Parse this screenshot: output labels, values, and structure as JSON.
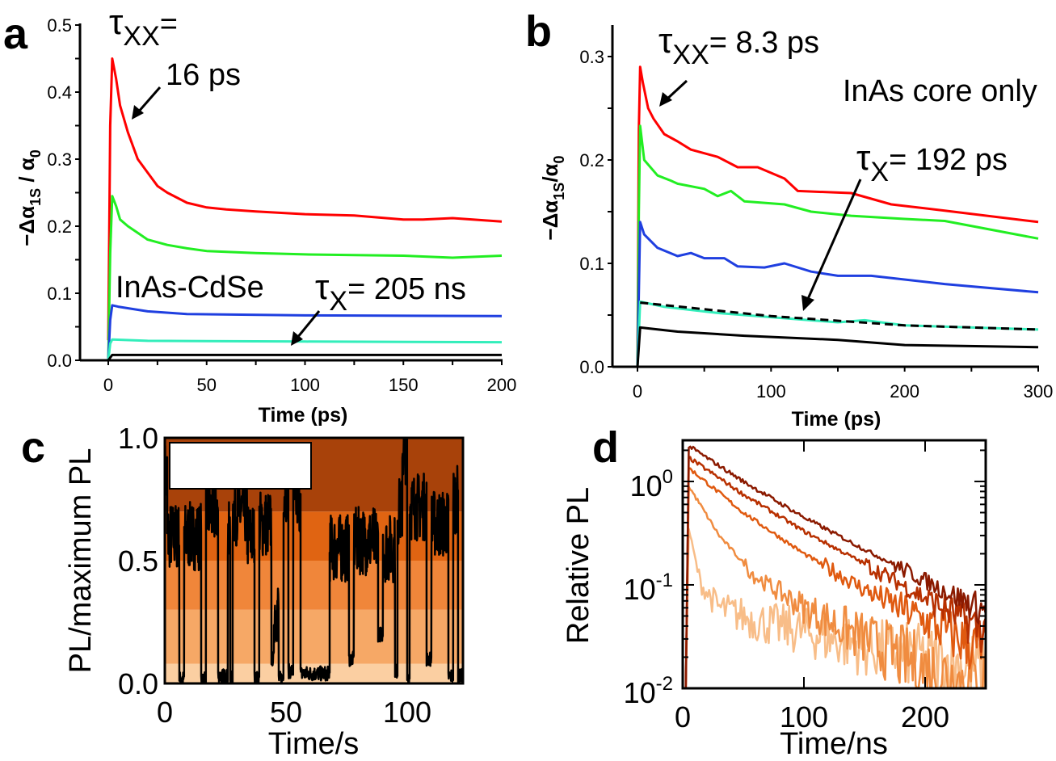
{
  "chart_data": [
    {
      "panel": "a",
      "type": "line",
      "xlabel": "Time (ps)",
      "ylabel": {
        "main": "−Δα",
        "sub1": "1S",
        "mid": " / α",
        "sub2": "0"
      },
      "xlim": [
        -10,
        200
      ],
      "ylim": [
        0,
        0.5
      ],
      "xticks": [
        "0",
        "50",
        "100",
        "150",
        "200"
      ],
      "yticks": [
        "0.0",
        "0.1",
        "0.2",
        "0.3",
        "0.4",
        "0.5"
      ],
      "annotations": {
        "tau_xx": {
          "symbol": "τ",
          "sub": "XX",
          "eq": "=",
          "value": "16 ps"
        },
        "sample": "InAs-CdSe",
        "tau_x": {
          "symbol": "τ",
          "sub": "X",
          "eq": "= 205 ns"
        }
      },
      "series": [
        {
          "color": "#ff0000",
          "x": [
            0,
            1,
            2,
            4,
            6,
            10,
            15,
            20,
            25,
            30,
            40,
            50,
            60,
            75,
            100,
            125,
            150,
            160,
            175,
            200
          ],
          "y": [
            0.03,
            0.35,
            0.45,
            0.42,
            0.38,
            0.34,
            0.3,
            0.28,
            0.26,
            0.25,
            0.235,
            0.228,
            0.225,
            0.222,
            0.218,
            0.216,
            0.21,
            0.21,
            0.212,
            0.207
          ]
        },
        {
          "color": "#22ee22",
          "x": [
            0,
            1,
            2,
            4,
            6,
            10,
            15,
            20,
            30,
            40,
            50,
            75,
            100,
            125,
            150,
            175,
            200
          ],
          "y": [
            0,
            0.16,
            0.245,
            0.23,
            0.21,
            0.2,
            0.19,
            0.18,
            0.172,
            0.167,
            0.163,
            0.16,
            0.158,
            0.157,
            0.156,
            0.153,
            0.156
          ]
        },
        {
          "color": "#1f3fe0",
          "x": [
            0,
            1,
            2,
            5,
            20,
            40,
            100,
            200
          ],
          "y": [
            0,
            0.06,
            0.082,
            0.08,
            0.073,
            0.069,
            0.067,
            0.066
          ]
        },
        {
          "color": "#33eebb",
          "x": [
            0,
            1,
            2,
            20,
            100,
            200
          ],
          "y": [
            0,
            0.025,
            0.031,
            0.029,
            0.028,
            0.027
          ]
        },
        {
          "color": "#000000",
          "x": [
            0,
            2,
            200
          ],
          "y": [
            0,
            0.008,
            0.008
          ]
        }
      ]
    },
    {
      "panel": "b",
      "type": "line",
      "xlabel": "Time (ps)",
      "ylabel": {
        "main": "−Δα",
        "sub1": "1S",
        "mid": "/α",
        "sub2": "0"
      },
      "xlim": [
        -20,
        300
      ],
      "ylim": [
        0,
        0.33
      ],
      "xticks": [
        "0",
        "100",
        "200",
        "300"
      ],
      "yticks": [
        "0.0",
        "0.1",
        "0.2",
        "0.3"
      ],
      "annotations": {
        "tau_xx": {
          "symbol": "τ",
          "sub": "XX",
          "eq": "= 8.3 ps"
        },
        "sample": "InAs core only",
        "tau_x": {
          "symbol": "τ",
          "sub": "X",
          "eq": "= 192 ps"
        }
      },
      "series": [
        {
          "color": "#ff0000",
          "x": [
            0,
            1,
            2,
            4,
            8,
            12,
            20,
            30,
            40,
            60,
            75,
            90,
            110,
            120,
            160,
            190,
            230,
            300
          ],
          "y": [
            0,
            0.23,
            0.29,
            0.275,
            0.25,
            0.24,
            0.225,
            0.218,
            0.21,
            0.203,
            0.193,
            0.193,
            0.182,
            0.17,
            0.168,
            0.157,
            0.151,
            0.14
          ]
        },
        {
          "color": "#22ee22",
          "x": [
            0,
            1,
            2,
            5,
            15,
            25,
            30,
            50,
            60,
            70,
            80,
            110,
            130,
            160,
            200,
            230,
            300
          ],
          "y": [
            0,
            0.15,
            0.233,
            0.2,
            0.185,
            0.18,
            0.177,
            0.172,
            0.165,
            0.17,
            0.16,
            0.157,
            0.15,
            0.146,
            0.143,
            0.141,
            0.124
          ]
        },
        {
          "color": "#1f3fe0",
          "x": [
            0,
            2,
            5,
            15,
            30,
            40,
            50,
            65,
            75,
            95,
            110,
            130,
            150,
            175,
            230,
            300
          ],
          "y": [
            0,
            0.14,
            0.128,
            0.115,
            0.107,
            0.11,
            0.105,
            0.105,
            0.097,
            0.096,
            0.1,
            0.092,
            0.088,
            0.088,
            0.08,
            0.072
          ]
        },
        {
          "color": "#33eebb",
          "x": [
            0,
            2,
            20,
            40,
            60,
            100,
            150,
            170,
            200,
            300
          ],
          "y": [
            0,
            0.063,
            0.058,
            0.055,
            0.052,
            0.048,
            0.043,
            0.045,
            0.04,
            0.036
          ]
        },
        {
          "color": "#000000",
          "dashed": true,
          "x": [
            2,
            100,
            200,
            300
          ],
          "y": [
            0.062,
            0.049,
            0.04,
            0.036
          ]
        },
        {
          "color": "#000000",
          "x": [
            0,
            2,
            30,
            80,
            150,
            200,
            300
          ],
          "y": [
            0,
            0.038,
            0.034,
            0.03,
            0.026,
            0.021,
            0.019
          ]
        }
      ]
    },
    {
      "panel": "c",
      "type": "line",
      "xlabel": "Time/s",
      "ylabel": "PL/maximum PL",
      "xlim": [
        0,
        123
      ],
      "ylim": [
        0,
        1.0
      ],
      "xticks": [
        "0",
        "50",
        "100"
      ],
      "yticks": [
        "0.0",
        "0.5",
        "1.0"
      ],
      "background_bands": [
        {
          "from": 0,
          "to": 0.08,
          "color": "#fbcfa2"
        },
        {
          "from": 0.08,
          "to": 0.3,
          "color": "#f6a866"
        },
        {
          "from": 0.3,
          "to": 0.5,
          "color": "#f0863a"
        },
        {
          "from": 0.5,
          "to": 0.7,
          "color": "#e06412"
        },
        {
          "from": 0.7,
          "to": 1.0,
          "color": "#a8420a"
        }
      ],
      "trace_color": "#000000",
      "trace_segments": [
        [
          0,
          1,
          0.85
        ],
        [
          1,
          6,
          0.6
        ],
        [
          6,
          8,
          0.02
        ],
        [
          8,
          15,
          0.6
        ],
        [
          15,
          17,
          0.02
        ],
        [
          17,
          22,
          0.7
        ],
        [
          22,
          26,
          0.03
        ],
        [
          26,
          27,
          0.6
        ],
        [
          27,
          28,
          0.02
        ],
        [
          28,
          34,
          0.7
        ],
        [
          34,
          37,
          0.6
        ],
        [
          37,
          39,
          0.02
        ],
        [
          39,
          44,
          0.65
        ],
        [
          44,
          45,
          0.1
        ],
        [
          45,
          47,
          0.3
        ],
        [
          47,
          49,
          0.02
        ],
        [
          49,
          51,
          0.8
        ],
        [
          51,
          53,
          0.05
        ],
        [
          53,
          56,
          0.75
        ],
        [
          56,
          68,
          0.04
        ],
        [
          68,
          76,
          0.55
        ],
        [
          76,
          78,
          0.1
        ],
        [
          78,
          88,
          0.58
        ],
        [
          88,
          90,
          0.2
        ],
        [
          90,
          95,
          0.55
        ],
        [
          95,
          96,
          0.05
        ],
        [
          96,
          98,
          0.7
        ],
        [
          98,
          100,
          0.95
        ],
        [
          100,
          101,
          0.02
        ],
        [
          101,
          108,
          0.72
        ],
        [
          108,
          110,
          0.1
        ],
        [
          110,
          117,
          0.65
        ],
        [
          117,
          119,
          0.03
        ],
        [
          119,
          121,
          0.75
        ],
        [
          121,
          123,
          0.03
        ]
      ]
    },
    {
      "panel": "d",
      "type": "line",
      "xlabel": "Time/ns",
      "ylabel": "Relative PL",
      "yscale": "log",
      "xlim": [
        0,
        250
      ],
      "ylim": [
        0.01,
        2.5
      ],
      "xticks": [
        "0",
        "100",
        "200"
      ],
      "yticks": [
        {
          "base": "10",
          "exp": "0"
        },
        {
          "base": "10",
          "exp": "-1"
        },
        {
          "base": "10",
          "exp": "-2"
        }
      ],
      "series": [
        {
          "color": "#8b1a00",
          "x": [
            5,
            50,
            100,
            150,
            200,
            250
          ],
          "y": [
            2.2,
            1.0,
            0.45,
            0.22,
            0.11,
            0.055
          ]
        },
        {
          "color": "#b83000",
          "x": [
            5,
            50,
            100,
            150,
            200,
            250
          ],
          "y": [
            1.7,
            0.75,
            0.33,
            0.16,
            0.075,
            0.035
          ]
        },
        {
          "color": "#e05a10",
          "x": [
            5,
            50,
            100,
            150,
            200,
            250
          ],
          "y": [
            1.35,
            0.5,
            0.2,
            0.09,
            0.045,
            0.022
          ]
        },
        {
          "color": "#f08c40",
          "x": [
            5,
            30,
            60,
            100,
            150,
            200,
            250
          ],
          "y": [
            0.9,
            0.3,
            0.12,
            0.06,
            0.03,
            0.015,
            0.01
          ]
        },
        {
          "color": "#f8bd88",
          "x": [
            5,
            15,
            30,
            60,
            100,
            150,
            200,
            250
          ],
          "y": [
            0.35,
            0.1,
            0.06,
            0.045,
            0.035,
            0.025,
            0.02,
            0.015
          ]
        }
      ]
    }
  ],
  "panel_letters": [
    "a",
    "b",
    "c",
    "d"
  ]
}
